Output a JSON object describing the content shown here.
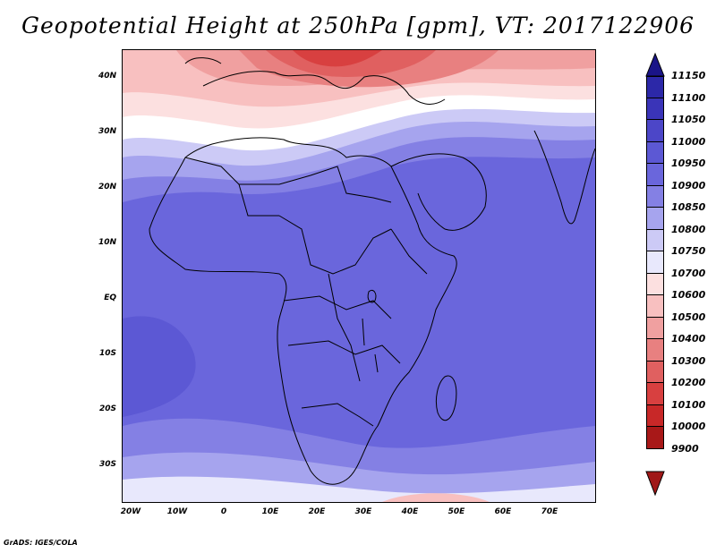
{
  "title": "Geopotential Height at 250hPa [gpm], VT: 2017122906",
  "footer": "GrADS: IGES/COLA",
  "lat_labels": [
    "40N",
    "30N",
    "20N",
    "10N",
    "EQ",
    "10S",
    "20S",
    "30S"
  ],
  "lon_labels": [
    "20W",
    "10W",
    "0",
    "10E",
    "20E",
    "30E",
    "40E",
    "50E",
    "60E",
    "70E"
  ],
  "colorbar": {
    "levels": [
      "11150",
      "11100",
      "11050",
      "11000",
      "10950",
      "10900",
      "10850",
      "10800",
      "10750",
      "10700",
      "10600",
      "10500",
      "10400",
      "10300",
      "10200",
      "10100",
      "10000",
      "9900"
    ],
    "colors": [
      "#1a1488",
      "#2c28a8",
      "#3a34b8",
      "#4c46c8",
      "#5c58d4",
      "#6a66dc",
      "#8480e4",
      "#a6a4ee",
      "#cccaf6",
      "#e8e8fc",
      "#fce0e0",
      "#f8c0c0",
      "#f0a0a0",
      "#e88080",
      "#e06060",
      "#d84040",
      "#c82828",
      "#a81818",
      "#881010"
    ],
    "top_arrow_color": "#1a1488",
    "bottom_arrow_color": "#a01818"
  },
  "field_colors": {
    "ocean_low": "#6a66dc",
    "mid": "#8480e4",
    "light": "#cccaf6",
    "white": "#ffffff",
    "pink": "#fce0e0",
    "pink2": "#f8c0c0",
    "red": "#e88080",
    "dark_red": "#d84040"
  }
}
